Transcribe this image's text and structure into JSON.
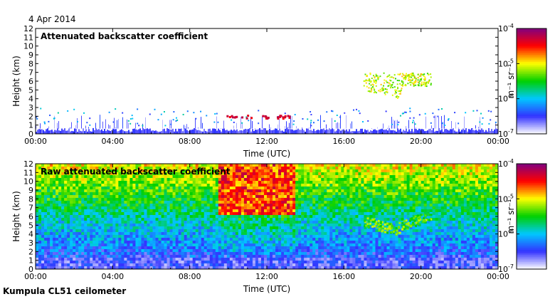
{
  "date": "4 Apr 2014",
  "footer": "Kumpula CL51 ceilometer",
  "colorbar": {
    "unit": "m⁻¹ sr⁻¹",
    "ticks": [
      {
        "base": "10",
        "exp": "-7",
        "log": -7
      },
      {
        "base": "10",
        "exp": "-6",
        "log": -6
      },
      {
        "base": "10",
        "exp": "-5",
        "log": -5
      },
      {
        "base": "10",
        "exp": "-4",
        "log": -4
      }
    ],
    "colors": [
      "#ffffff",
      "#3333ff",
      "#00c8ff",
      "#00d000",
      "#ffff00",
      "#ff0000",
      "#800080"
    ]
  },
  "chart_data": [
    {
      "type": "heatmap",
      "title": "Attenuated backscatter coefficient",
      "xlabel": "Time (UTC)",
      "ylabel": "Height (km)",
      "x_ticks": [
        "00:00",
        "04:00",
        "08:00",
        "12:00",
        "16:00",
        "20:00",
        "00:00"
      ],
      "xlim_hours": [
        0,
        24
      ],
      "y_ticks": [
        0,
        1,
        2,
        3,
        4,
        5,
        6,
        7,
        8,
        9,
        10,
        11,
        12
      ],
      "ylim_km": [
        0,
        12
      ],
      "colorscale_log10": [
        -7,
        -4
      ],
      "features": [
        {
          "name": "boundary-layer aerosol",
          "hours": [
            0,
            24
          ],
          "height_km": [
            0,
            0.6
          ],
          "log10_beta": -6.7
        },
        {
          "name": "red cloud patches",
          "hours": [
            9.5,
            13.2
          ],
          "height_km": [
            1.8,
            2.2
          ],
          "log10_beta": -4.5
        },
        {
          "name": "mid-level cloud",
          "hours": [
            17,
            20.5
          ],
          "height_km": [
            4,
            7
          ],
          "log10_beta": -5.2
        }
      ]
    },
    {
      "type": "heatmap",
      "title": "Raw attenuated backscatter coefficient",
      "xlabel": "Time (UTC)",
      "ylabel": "Height (km)",
      "x_ticks": [
        "00:00",
        "04:00",
        "08:00",
        "12:00",
        "16:00",
        "20:00",
        "00:00"
      ],
      "xlim_hours": [
        0,
        24
      ],
      "y_ticks": [
        0,
        1,
        2,
        3,
        4,
        5,
        6,
        7,
        8,
        9,
        10,
        11,
        12
      ],
      "ylim_km": [
        0,
        12
      ],
      "colorscale_log10": [
        -7,
        -4
      ],
      "features": [
        {
          "name": "noise background",
          "hours": [
            0,
            24
          ],
          "height_km": [
            0,
            12
          ],
          "log10_beta": -5.8
        },
        {
          "name": "daytime noise",
          "hours": [
            9.5,
            13.5
          ],
          "height_km": [
            6,
            12
          ],
          "log10_beta": -4.6
        },
        {
          "name": "mid-level cloud",
          "hours": [
            17,
            20.5
          ],
          "height_km": [
            4,
            7
          ],
          "log10_beta": -5.3
        }
      ]
    }
  ]
}
